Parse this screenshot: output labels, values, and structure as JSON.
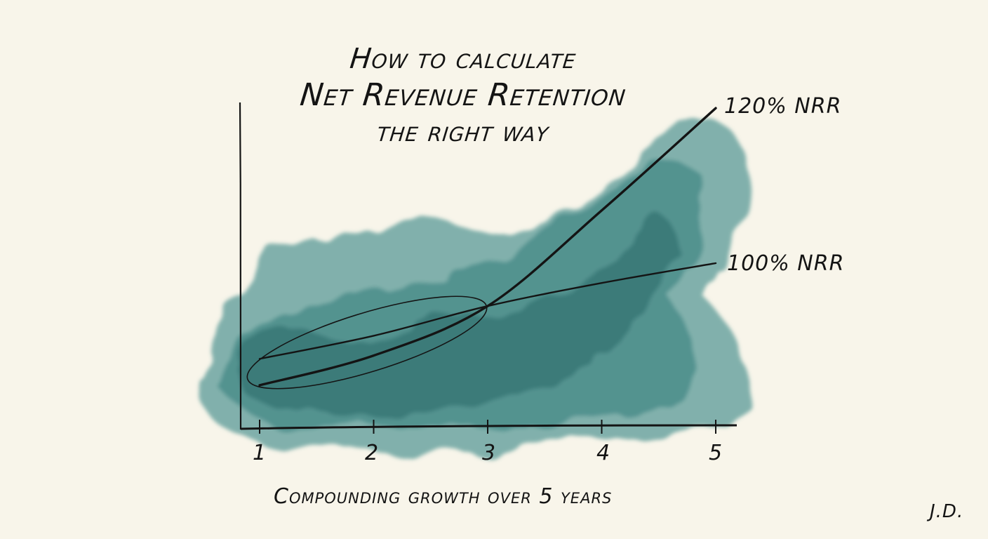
{
  "chart_data": {
    "type": "line",
    "title": [
      "How to calculate",
      "Net Revenue Retention",
      "the right way"
    ],
    "xlabel": "Compounding growth over 5 years",
    "ylabel": "",
    "x": [
      1,
      2,
      3,
      4,
      5
    ],
    "x_tick_labels": [
      "1",
      "2",
      "3",
      "4",
      "5"
    ],
    "y_axis_ticks": "none",
    "grid": false,
    "series": [
      {
        "name": "120% NRR",
        "values": [
          13,
          22,
          37,
          66,
          97
        ]
      },
      {
        "name": "100% NRR",
        "values": [
          21,
          28,
          37,
          44,
          50
        ]
      }
    ],
    "annotation": "ellipse circling years 1–3 where the curves cross",
    "signature": "J.D.",
    "colors": {
      "background": "#f8f5ea",
      "watercolor": "#2f7a78",
      "ink": "#141414"
    }
  }
}
